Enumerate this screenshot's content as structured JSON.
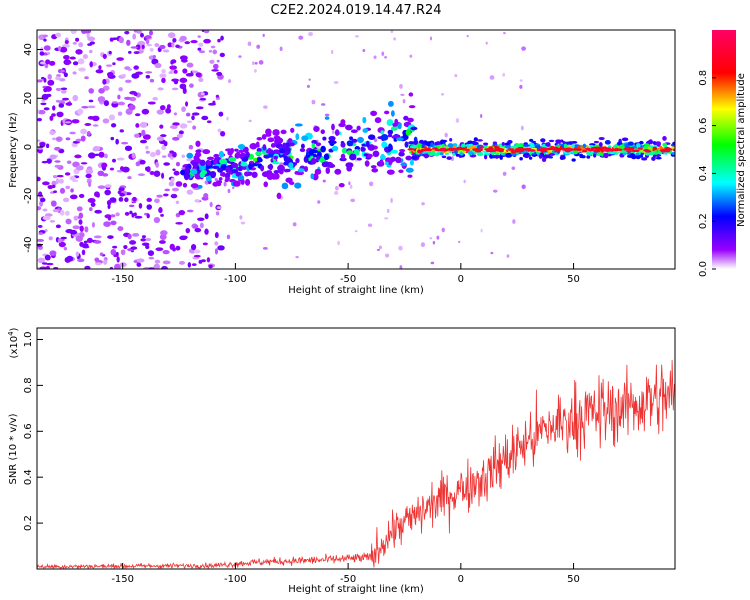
{
  "title": "C2E2.2024.019.14.47.R24",
  "chart_data": [
    {
      "type": "heatmap",
      "title": "C2E2.2024.019.14.47.R24",
      "xlabel": "Height of straight line (km)",
      "ylabel": "Frequency (Hz)",
      "xlim": [
        -188,
        95
      ],
      "ylim": [
        -50,
        48
      ],
      "x_ticks": [
        -150,
        -100,
        -50,
        0,
        50
      ],
      "y_ticks": [
        -40,
        -20,
        0,
        20,
        40
      ],
      "x_tick_labels": [
        "-150",
        "-100",
        "-50",
        "0",
        "50"
      ],
      "y_tick_labels": [
        "-40",
        "-20",
        "0",
        "20",
        "40"
      ],
      "colorbar": {
        "label": "Normalized spectral amplitude",
        "range": [
          0,
          1
        ],
        "ticks": [
          0.0,
          0.2,
          0.4,
          0.6,
          0.8
        ],
        "tick_labels": [
          "0.0",
          "0.2",
          "0.4",
          "0.6",
          "0.8"
        ],
        "colormap": "rainbow (white-purple-blue-cyan-green-yellow-red-magenta)"
      },
      "features": [
        {
          "region": "noise",
          "x_range": [
            -188,
            -105
          ],
          "y_range": [
            -50,
            48
          ],
          "amplitude": 0.1
        },
        {
          "region": "ridge",
          "x_range": [
            -123,
            -20
          ],
          "center_freq_start": -10,
          "center_freq_end": 4,
          "amplitude": 0.3
        },
        {
          "region": "line",
          "x_range": [
            -22,
            95
          ],
          "center_freq": -1,
          "amplitude": 0.9
        }
      ]
    },
    {
      "type": "line",
      "xlabel": "Height of straight line (km)",
      "ylabel": "SNR (10 * v/v)",
      "y_scale_label": "(x10",
      "y_scale_exponent": "4",
      "y_scale_suffix": ")",
      "xlim": [
        -188,
        95
      ],
      "ylim": [
        0,
        1.05
      ],
      "x_ticks": [
        -150,
        -100,
        -50,
        0,
        50
      ],
      "y_ticks": [
        0.2,
        0.4,
        0.6,
        0.8,
        1.0
      ],
      "x_tick_labels": [
        "-150",
        "-100",
        "-50",
        "0",
        "50"
      ],
      "y_tick_labels": [
        "0.2",
        "0.4",
        "0.6",
        "0.8",
        "1.0"
      ],
      "color": "#ee3333",
      "trend_points": [
        {
          "x": -188,
          "y": 0.01
        },
        {
          "x": -110,
          "y": 0.015
        },
        {
          "x": -90,
          "y": 0.03
        },
        {
          "x": -60,
          "y": 0.04
        },
        {
          "x": -40,
          "y": 0.05
        },
        {
          "x": -30,
          "y": 0.17
        },
        {
          "x": -20,
          "y": 0.23
        },
        {
          "x": -10,
          "y": 0.3
        },
        {
          "x": 0,
          "y": 0.35
        },
        {
          "x": 10,
          "y": 0.4
        },
        {
          "x": 20,
          "y": 0.48
        },
        {
          "x": 30,
          "y": 0.56
        },
        {
          "x": 40,
          "y": 0.62
        },
        {
          "x": 55,
          "y": 0.67
        },
        {
          "x": 70,
          "y": 0.7
        },
        {
          "x": 95,
          "y": 0.76
        }
      ]
    }
  ]
}
